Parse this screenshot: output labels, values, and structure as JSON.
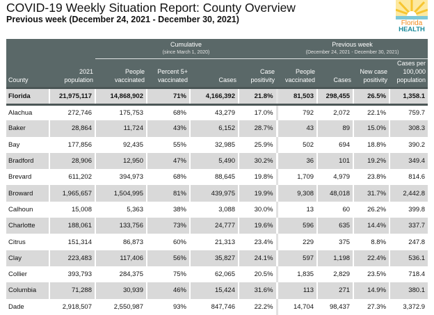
{
  "header": {
    "title": "COVID-19 Weekly Situation Report: County Overview",
    "subtitle": "Previous week (December 24, 2021 - December 30, 2021)",
    "logo_text": "Florida HEALTH"
  },
  "colors": {
    "header_bg": "#5a6868",
    "alt_row": "#d9d9d9",
    "logo_orange": "#f08a1c",
    "logo_teal": "#1a8a9a"
  },
  "table": {
    "groups": {
      "cumulative": "Cumulative",
      "cumulative_sub": "(since March 1, 2020)",
      "previous": "Previous week",
      "previous_sub": "(December 24, 2021 - December 30, 2021)"
    },
    "columns": [
      "County",
      "2021 population",
      "People vaccinated",
      "Percent 5+ vaccinated",
      "Cases",
      "Case positivity",
      "People vaccinated",
      "Cases",
      "New case positivity",
      "Cases per 100,000 population"
    ],
    "total": [
      "Florida",
      "21,975,117",
      "14,868,902",
      "71%",
      "4,166,392",
      "21.8%",
      "81,503",
      "298,455",
      "26.5%",
      "1,358.1"
    ],
    "rows": [
      [
        "Alachua",
        "272,746",
        "175,753",
        "68%",
        "43,279",
        "17.0%",
        "792",
        "2,072",
        "22.1%",
        "759.7"
      ],
      [
        "Baker",
        "28,864",
        "11,724",
        "43%",
        "6,152",
        "28.7%",
        "43",
        "89",
        "15.0%",
        "308.3"
      ],
      [
        "Bay",
        "177,856",
        "92,435",
        "55%",
        "32,985",
        "25.9%",
        "502",
        "694",
        "18.8%",
        "390.2"
      ],
      [
        "Bradford",
        "28,906",
        "12,950",
        "47%",
        "5,490",
        "30.2%",
        "36",
        "101",
        "19.2%",
        "349.4"
      ],
      [
        "Brevard",
        "611,202",
        "394,973",
        "68%",
        "88,645",
        "19.8%",
        "1,709",
        "4,979",
        "23.8%",
        "814.6"
      ],
      [
        "Broward",
        "1,965,657",
        "1,504,995",
        "81%",
        "439,975",
        "19.9%",
        "9,308",
        "48,018",
        "31.7%",
        "2,442.8"
      ],
      [
        "Calhoun",
        "15,008",
        "5,363",
        "38%",
        "3,088",
        "30.0%",
        "13",
        "60",
        "26.2%",
        "399.8"
      ],
      [
        "Charlotte",
        "188,061",
        "133,756",
        "73%",
        "24,777",
        "19.6%",
        "596",
        "635",
        "14.4%",
        "337.7"
      ],
      [
        "Citrus",
        "151,314",
        "86,873",
        "60%",
        "21,313",
        "23.4%",
        "229",
        "375",
        "8.8%",
        "247.8"
      ],
      [
        "Clay",
        "223,483",
        "117,406",
        "56%",
        "35,827",
        "24.1%",
        "597",
        "1,198",
        "22.4%",
        "536.1"
      ],
      [
        "Collier",
        "393,793",
        "284,375",
        "75%",
        "62,065",
        "20.5%",
        "1,835",
        "2,829",
        "23.5%",
        "718.4"
      ],
      [
        "Columbia",
        "71,288",
        "30,939",
        "46%",
        "15,424",
        "31.6%",
        "113",
        "271",
        "14.9%",
        "380.1"
      ],
      [
        "Dade",
        "2,918,507",
        "2,550,987",
        "93%",
        "847,746",
        "22.2%",
        "14,704",
        "98,437",
        "27.3%",
        "3,372.9"
      ]
    ]
  }
}
